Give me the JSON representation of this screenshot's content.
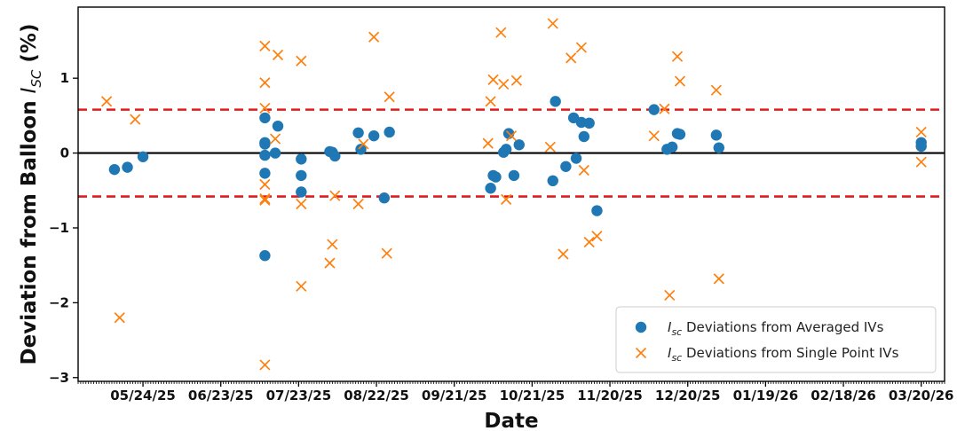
{
  "chart_data": {
    "type": "scatter",
    "xlabel": "Date",
    "ylabel_main": "Deviation from Balloon ",
    "ylabel_sym": "I",
    "ylabel_sub": "SC",
    "ylabel_tail": " (%)",
    "x_axis": {
      "kind": "date",
      "range": [
        "2025-04-29",
        "2026-03-29"
      ],
      "tick_labels": [
        "05/24/25",
        "06/23/25",
        "07/23/25",
        "08/22/25",
        "09/21/25",
        "10/21/25",
        "11/20/25",
        "12/20/25",
        "01/19/26",
        "02/18/26",
        "03/20/26"
      ],
      "tick_dates": [
        "2025-05-24",
        "2025-06-23",
        "2025-07-23",
        "2025-08-22",
        "2025-09-21",
        "2025-10-21",
        "2025-11-20",
        "2025-12-20",
        "2026-01-19",
        "2026-02-18",
        "2026-03-20"
      ],
      "minor_ticks": "daily"
    },
    "y_axis": {
      "range": [
        -3.05,
        1.95
      ],
      "ticks": [
        -3,
        -2,
        -1,
        0,
        1
      ],
      "tick_labels": [
        "−3",
        "−2",
        "−1",
        "0",
        "1"
      ]
    },
    "reference_lines": [
      {
        "y": 0,
        "style": "solid",
        "color": "#000000"
      },
      {
        "y": 0.58,
        "style": "dashed",
        "color": "#e31a1c"
      },
      {
        "y": -0.58,
        "style": "dashed",
        "color": "#e31a1c"
      }
    ],
    "legend_placement": "bottom-right",
    "grid": false,
    "series": [
      {
        "name_sym": "I",
        "name_sub": "sc",
        "name_rest": " Deviations from Averaged IVs",
        "marker": "circle",
        "color": "#1f77b4",
        "points": [
          [
            "2025-05-13",
            -0.22
          ],
          [
            "2025-05-18",
            -0.19
          ],
          [
            "2025-05-24",
            -0.05
          ],
          [
            "2025-07-10",
            0.14
          ],
          [
            "2025-07-10",
            0.12
          ],
          [
            "2025-07-10",
            -0.03
          ],
          [
            "2025-07-10",
            0.47
          ],
          [
            "2025-07-10",
            -0.27
          ],
          [
            "2025-07-10",
            -1.37
          ],
          [
            "2025-07-14",
            0.0
          ],
          [
            "2025-07-15",
            0.36
          ],
          [
            "2025-07-24",
            -0.08
          ],
          [
            "2025-07-24",
            -0.3
          ],
          [
            "2025-07-24",
            -0.52
          ],
          [
            "2025-08-04",
            0.02
          ],
          [
            "2025-08-05",
            0.01
          ],
          [
            "2025-08-06",
            -0.04
          ],
          [
            "2025-08-15",
            0.27
          ],
          [
            "2025-08-16",
            0.05
          ],
          [
            "2025-08-21",
            0.23
          ],
          [
            "2025-08-25",
            -0.6
          ],
          [
            "2025-08-27",
            0.28
          ],
          [
            "2025-10-05",
            -0.47
          ],
          [
            "2025-10-06",
            -0.3
          ],
          [
            "2025-10-07",
            -0.32
          ],
          [
            "2025-10-10",
            0.01
          ],
          [
            "2025-10-11",
            0.05
          ],
          [
            "2025-10-12",
            0.26
          ],
          [
            "2025-10-14",
            -0.3
          ],
          [
            "2025-10-16",
            0.11
          ],
          [
            "2025-10-29",
            -0.37
          ],
          [
            "2025-10-30",
            0.69
          ],
          [
            "2025-11-03",
            -0.18
          ],
          [
            "2025-11-06",
            0.47
          ],
          [
            "2025-11-07",
            -0.07
          ],
          [
            "2025-11-09",
            0.41
          ],
          [
            "2025-11-10",
            0.22
          ],
          [
            "2025-11-12",
            0.4
          ],
          [
            "2025-11-15",
            -0.77
          ],
          [
            "2025-12-07",
            0.58
          ],
          [
            "2025-12-12",
            0.05
          ],
          [
            "2025-12-14",
            0.08
          ],
          [
            "2025-12-16",
            0.26
          ],
          [
            "2025-12-17",
            0.25
          ],
          [
            "2025-12-31",
            0.24
          ],
          [
            "2026-01-01",
            0.07
          ],
          [
            "2026-03-20",
            0.14
          ],
          [
            "2026-03-20",
            0.09
          ]
        ]
      },
      {
        "name_sym": "I",
        "name_sub": "sc",
        "name_rest": " Deviations from Single Point IVs",
        "marker": "x",
        "color": "#ff7f0e",
        "points": [
          [
            "2025-05-10",
            0.69
          ],
          [
            "2025-05-15",
            -2.2
          ],
          [
            "2025-05-21",
            0.45
          ],
          [
            "2025-07-10",
            1.43
          ],
          [
            "2025-07-10",
            0.94
          ],
          [
            "2025-07-10",
            0.6
          ],
          [
            "2025-07-10",
            -0.42
          ],
          [
            "2025-07-10",
            -0.61
          ],
          [
            "2025-07-10",
            -0.63
          ],
          [
            "2025-07-10",
            -2.83
          ],
          [
            "2025-07-14",
            0.19
          ],
          [
            "2025-07-15",
            1.31
          ],
          [
            "2025-07-24",
            1.23
          ],
          [
            "2025-07-24",
            -0.68
          ],
          [
            "2025-07-24",
            -1.78
          ],
          [
            "2025-08-04",
            -1.47
          ],
          [
            "2025-08-05",
            -1.22
          ],
          [
            "2025-08-06",
            -0.57
          ],
          [
            "2025-08-15",
            -0.68
          ],
          [
            "2025-08-17",
            0.12
          ],
          [
            "2025-08-21",
            1.55
          ],
          [
            "2025-08-26",
            -1.34
          ],
          [
            "2025-08-27",
            0.75
          ],
          [
            "2025-10-04",
            0.13
          ],
          [
            "2025-10-05",
            0.69
          ],
          [
            "2025-10-06",
            0.98
          ],
          [
            "2025-10-09",
            1.61
          ],
          [
            "2025-10-10",
            0.92
          ],
          [
            "2025-10-11",
            -0.62
          ],
          [
            "2025-10-13",
            0.23
          ],
          [
            "2025-10-15",
            0.97
          ],
          [
            "2025-10-28",
            0.08
          ],
          [
            "2025-10-29",
            1.73
          ],
          [
            "2025-11-02",
            -1.35
          ],
          [
            "2025-11-05",
            1.27
          ],
          [
            "2025-11-09",
            1.41
          ],
          [
            "2025-11-10",
            -0.23
          ],
          [
            "2025-11-12",
            -1.19
          ],
          [
            "2025-11-15",
            -1.11
          ],
          [
            "2025-12-11",
            0.59
          ],
          [
            "2025-12-07",
            0.23
          ],
          [
            "2025-12-13",
            -1.9
          ],
          [
            "2025-12-16",
            1.29
          ],
          [
            "2025-12-17",
            0.96
          ],
          [
            "2025-12-31",
            0.84
          ],
          [
            "2026-01-01",
            -1.68
          ],
          [
            "2026-03-20",
            0.28
          ],
          [
            "2026-03-20",
            -0.12
          ]
        ]
      }
    ]
  }
}
